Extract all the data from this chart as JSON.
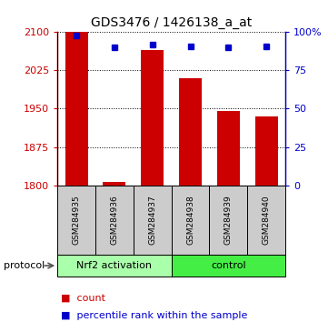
{
  "title": "GDS3476 / 1426138_a_at",
  "samples": [
    "GSM284935",
    "GSM284936",
    "GSM284937",
    "GSM284938",
    "GSM284939",
    "GSM284940"
  ],
  "counts": [
    2100,
    1806,
    2065,
    2010,
    1945,
    1935
  ],
  "percentile_ranks": [
    98,
    90,
    92,
    91,
    90,
    91
  ],
  "ylim_left": [
    1800,
    2100
  ],
  "yticks_left": [
    1800,
    1875,
    1950,
    2025,
    2100
  ],
  "ylim_right": [
    0,
    100
  ],
  "yticks_right": [
    0,
    25,
    50,
    75,
    100
  ],
  "groups": [
    {
      "label": "Nrf2 activation",
      "indices": [
        0,
        1,
        2
      ]
    },
    {
      "label": "control",
      "indices": [
        3,
        4,
        5
      ]
    }
  ],
  "bar_color": "#cc0000",
  "marker_color": "#0000cc",
  "group_color_nrf2": "#aaffaa",
  "group_color_ctrl": "#44ee44",
  "sample_box_color": "#cccccc",
  "protocol_label": "protocol",
  "legend_count_label": "count",
  "legend_pct_label": "percentile rank within the sample",
  "grid_style": "dotted",
  "background_color": "#ffffff",
  "title_fontsize": 10,
  "tick_fontsize": 8,
  "sample_fontsize": 6.5,
  "group_fontsize": 8,
  "legend_fontsize": 8,
  "protocol_fontsize": 8
}
